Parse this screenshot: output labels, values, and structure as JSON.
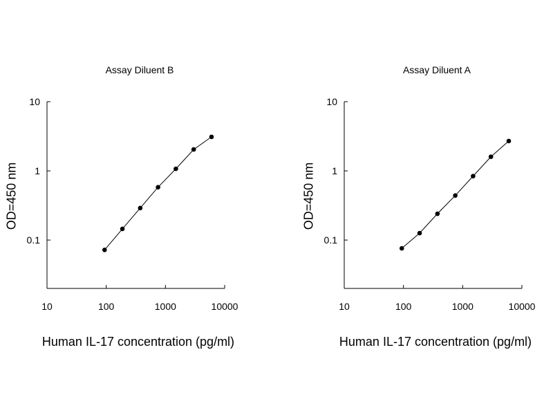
{
  "chart_data": [
    {
      "type": "line",
      "title": "Assay Diluent B",
      "xlabel": "Human IL-17 concentration (pg/ml)",
      "ylabel": "OD=450 nm",
      "xscale": "log",
      "yscale": "log",
      "xlim": [
        10,
        10000
      ],
      "ylim": [
        0.02,
        10
      ],
      "x_ticks": [
        10,
        100,
        1000,
        10000
      ],
      "x_tick_labels": [
        "10",
        "100",
        "1000",
        "10000"
      ],
      "y_ticks": [
        0.1,
        1,
        10
      ],
      "y_tick_labels": [
        "0.1",
        "1",
        "10"
      ],
      "grid": false,
      "series": [
        {
          "x": [
            93.75,
            187.5,
            375,
            750,
            1500,
            3000,
            6000
          ],
          "y": [
            0.072,
            0.145,
            0.29,
            0.58,
            1.07,
            2.04,
            3.1
          ]
        }
      ]
    },
    {
      "type": "line",
      "title": "Assay Diluent A",
      "xlabel": "Human IL-17 concentration (pg/ml)",
      "ylabel": "OD=450 nm",
      "xscale": "log",
      "yscale": "log",
      "xlim": [
        10,
        10000
      ],
      "ylim": [
        0.02,
        10
      ],
      "x_ticks": [
        10,
        100,
        1000,
        10000
      ],
      "x_tick_labels": [
        "10",
        "100",
        "1000",
        "10000"
      ],
      "y_ticks": [
        0.1,
        1,
        10
      ],
      "y_tick_labels": [
        "0.1",
        "1",
        "10"
      ],
      "grid": false,
      "series": [
        {
          "x": [
            93.75,
            187.5,
            375,
            750,
            1500,
            3000,
            6000
          ],
          "y": [
            0.076,
            0.126,
            0.24,
            0.44,
            0.84,
            1.6,
            2.7
          ]
        }
      ]
    }
  ]
}
